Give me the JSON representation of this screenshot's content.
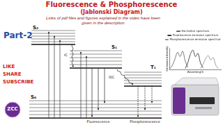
{
  "header": {
    "title": "Fluorescence & Phosphorescence",
    "subtitle": "(Jablonski Diagram)",
    "note": "Links of pdf files and figures explained in the video have been given in the description"
  },
  "part": "Part-2",
  "calls": [
    "LIKE",
    "SHARE",
    "SUBSCRIBE"
  ],
  "logo": "ZCC",
  "diagram": {
    "states": [
      "S₂",
      "S₁",
      "T₁",
      "S₀"
    ],
    "transitions": [
      "IC",
      "ISC"
    ],
    "emissions": [
      "Fluorescence",
      "Phosphorescence"
    ]
  },
  "chart_data": {
    "type": "line",
    "x_label": "Wavelength",
    "y_label": "Emission intensity",
    "x": [
      0,
      1,
      2,
      3,
      4,
      5,
      6,
      7,
      8,
      9,
      10,
      11,
      12,
      13,
      14,
      15,
      16,
      17,
      18,
      19,
      20
    ],
    "series": [
      {
        "name": "Excitation spectrum",
        "color": "#555555",
        "values": [
          0.5,
          2,
          5,
          8,
          6,
          8.5,
          4,
          1,
          null,
          null,
          null,
          null,
          null,
          null,
          null,
          null,
          null,
          null,
          null,
          null,
          null
        ]
      },
      {
        "name": "Fluorescence emission spectrum",
        "color": "#222222",
        "values": [
          null,
          null,
          null,
          null,
          null,
          null,
          0.5,
          3,
          7,
          9,
          6,
          7.5,
          3,
          0.8,
          null,
          null,
          null,
          null,
          null,
          null,
          null
        ]
      },
      {
        "name": "Phosphorescence emission spectrum",
        "color": "#888888",
        "values": [
          null,
          null,
          null,
          null,
          null,
          null,
          null,
          null,
          null,
          null,
          null,
          null,
          0.5,
          2.5,
          5,
          6.5,
          4.5,
          5.5,
          2,
          0.5,
          null
        ]
      }
    ],
    "xlim": [
      0,
      20
    ],
    "ylim": [
      0,
      10
    ],
    "tick_labels": false,
    "grid": false,
    "legend": "top"
  }
}
